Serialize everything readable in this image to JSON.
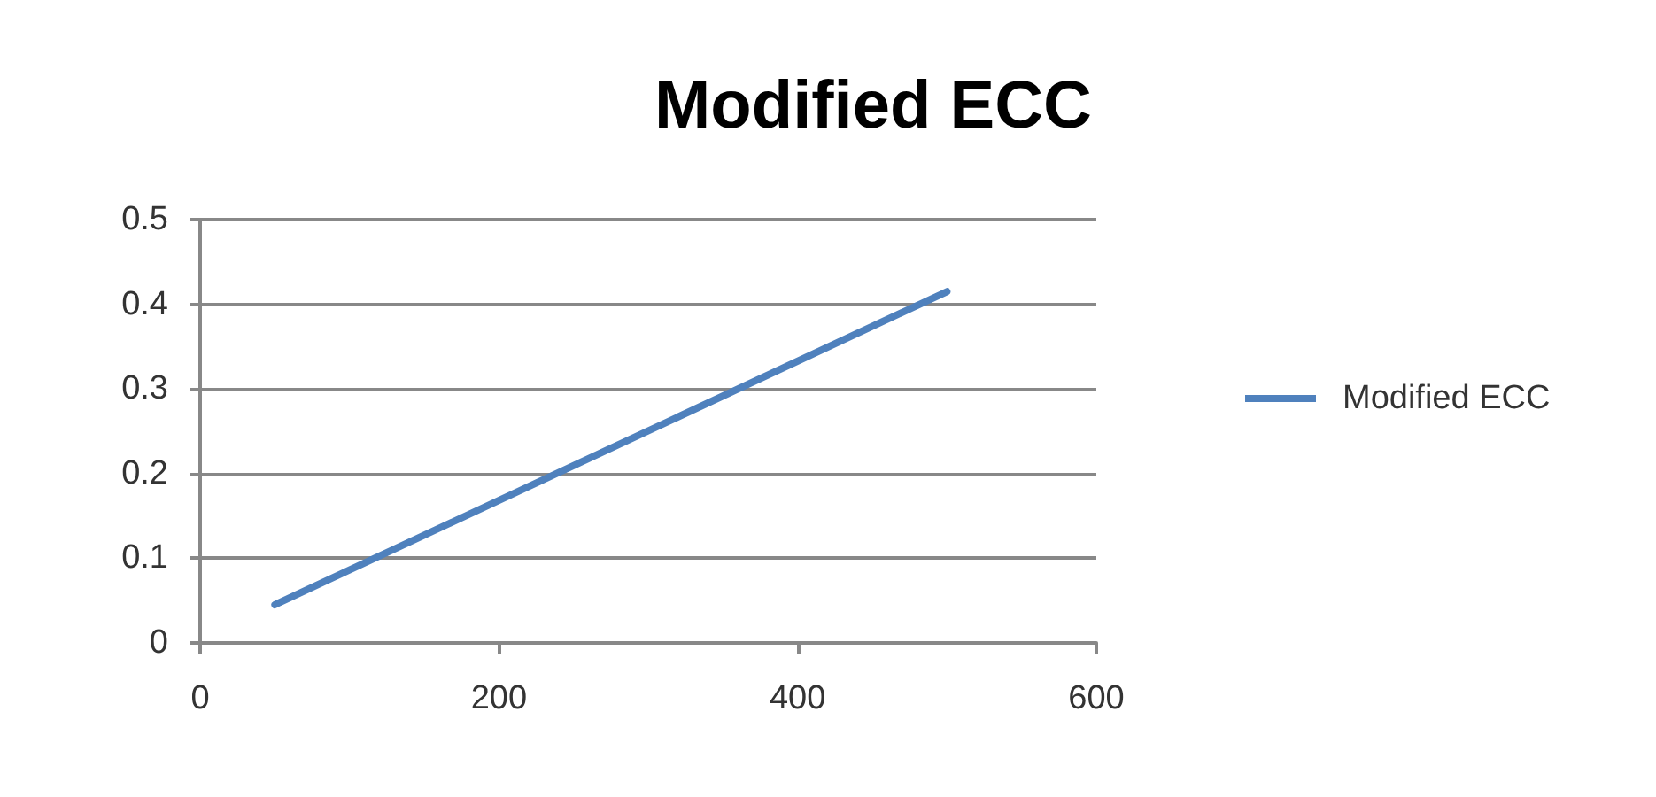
{
  "chart_data": {
    "type": "line",
    "title": "Modified ECC",
    "x": [
      50,
      500
    ],
    "series": [
      {
        "name": "Modified ECC",
        "color": "#4f81bd",
        "values": [
          0.045,
          0.415
        ]
      }
    ],
    "xlim": [
      0,
      600
    ],
    "xticks": [
      0,
      200,
      400,
      600
    ],
    "ylim": [
      0,
      0.5
    ],
    "yticks": [
      0,
      0.1,
      0.2,
      0.3,
      0.4,
      0.5
    ],
    "grid": "y",
    "legend": "right",
    "line_style": "solid"
  }
}
